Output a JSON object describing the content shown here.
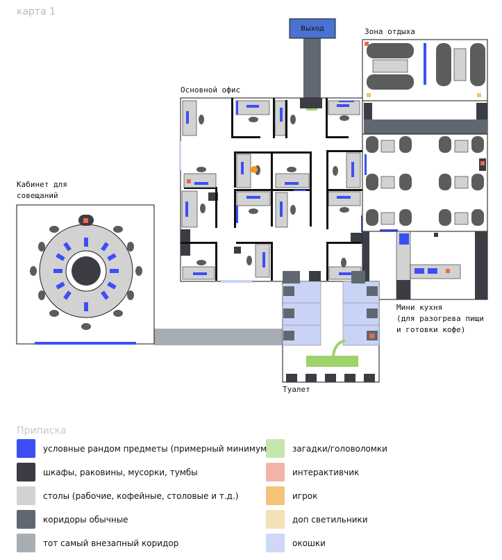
{
  "map": {
    "title": "карта 1",
    "exit_label": "Выход",
    "rooms": {
      "rest_zone": "Зона отдыха",
      "main_office": "Основной офис",
      "meeting_room": "Кабинет для\nсовещаний",
      "mini_kitchen": "Мини кухня\n(для разогрева пищи\nи готовки кофе)",
      "toilet": "Туалет"
    }
  },
  "legend": {
    "title": "Приписка",
    "items": [
      {
        "color": "#3b4ff5",
        "label": "условные рандом предметы (примерный минимум)"
      },
      {
        "color": "#3c3c44",
        "label": "шкафы, раковины, мусорки, тумбы"
      },
      {
        "color": "#d2d2d2",
        "label": "столы (рабочие, кофейные, столовые и т.д.)"
      },
      {
        "color": "#5f6871",
        "label": "коридоры обычные"
      },
      {
        "color": "#a8adb3",
        "label": "тот самый внезапный коридор"
      },
      {
        "color": "#c6e6b0",
        "label": "загадки/головоломки"
      },
      {
        "color": "#f4b3a7",
        "label": "интерактивчик"
      },
      {
        "color": "#f6c27a",
        "label": "игрок"
      },
      {
        "color": "#f3e2b5",
        "label": "доп светильники"
      },
      {
        "color": "#cfd8f6",
        "label": "окошки"
      }
    ]
  },
  "colors": {
    "item": "#3b4ff5",
    "furniture": "#3c3c44",
    "table": "#d2d2d2",
    "corridor": "#5f6871",
    "sudden_corridor": "#a8adb3",
    "puzzle": "#9ed26a",
    "interactive": "#f0664d",
    "player": "#f59a1c",
    "lamp": "#f2c56d",
    "window": "#c9d3f5"
  }
}
